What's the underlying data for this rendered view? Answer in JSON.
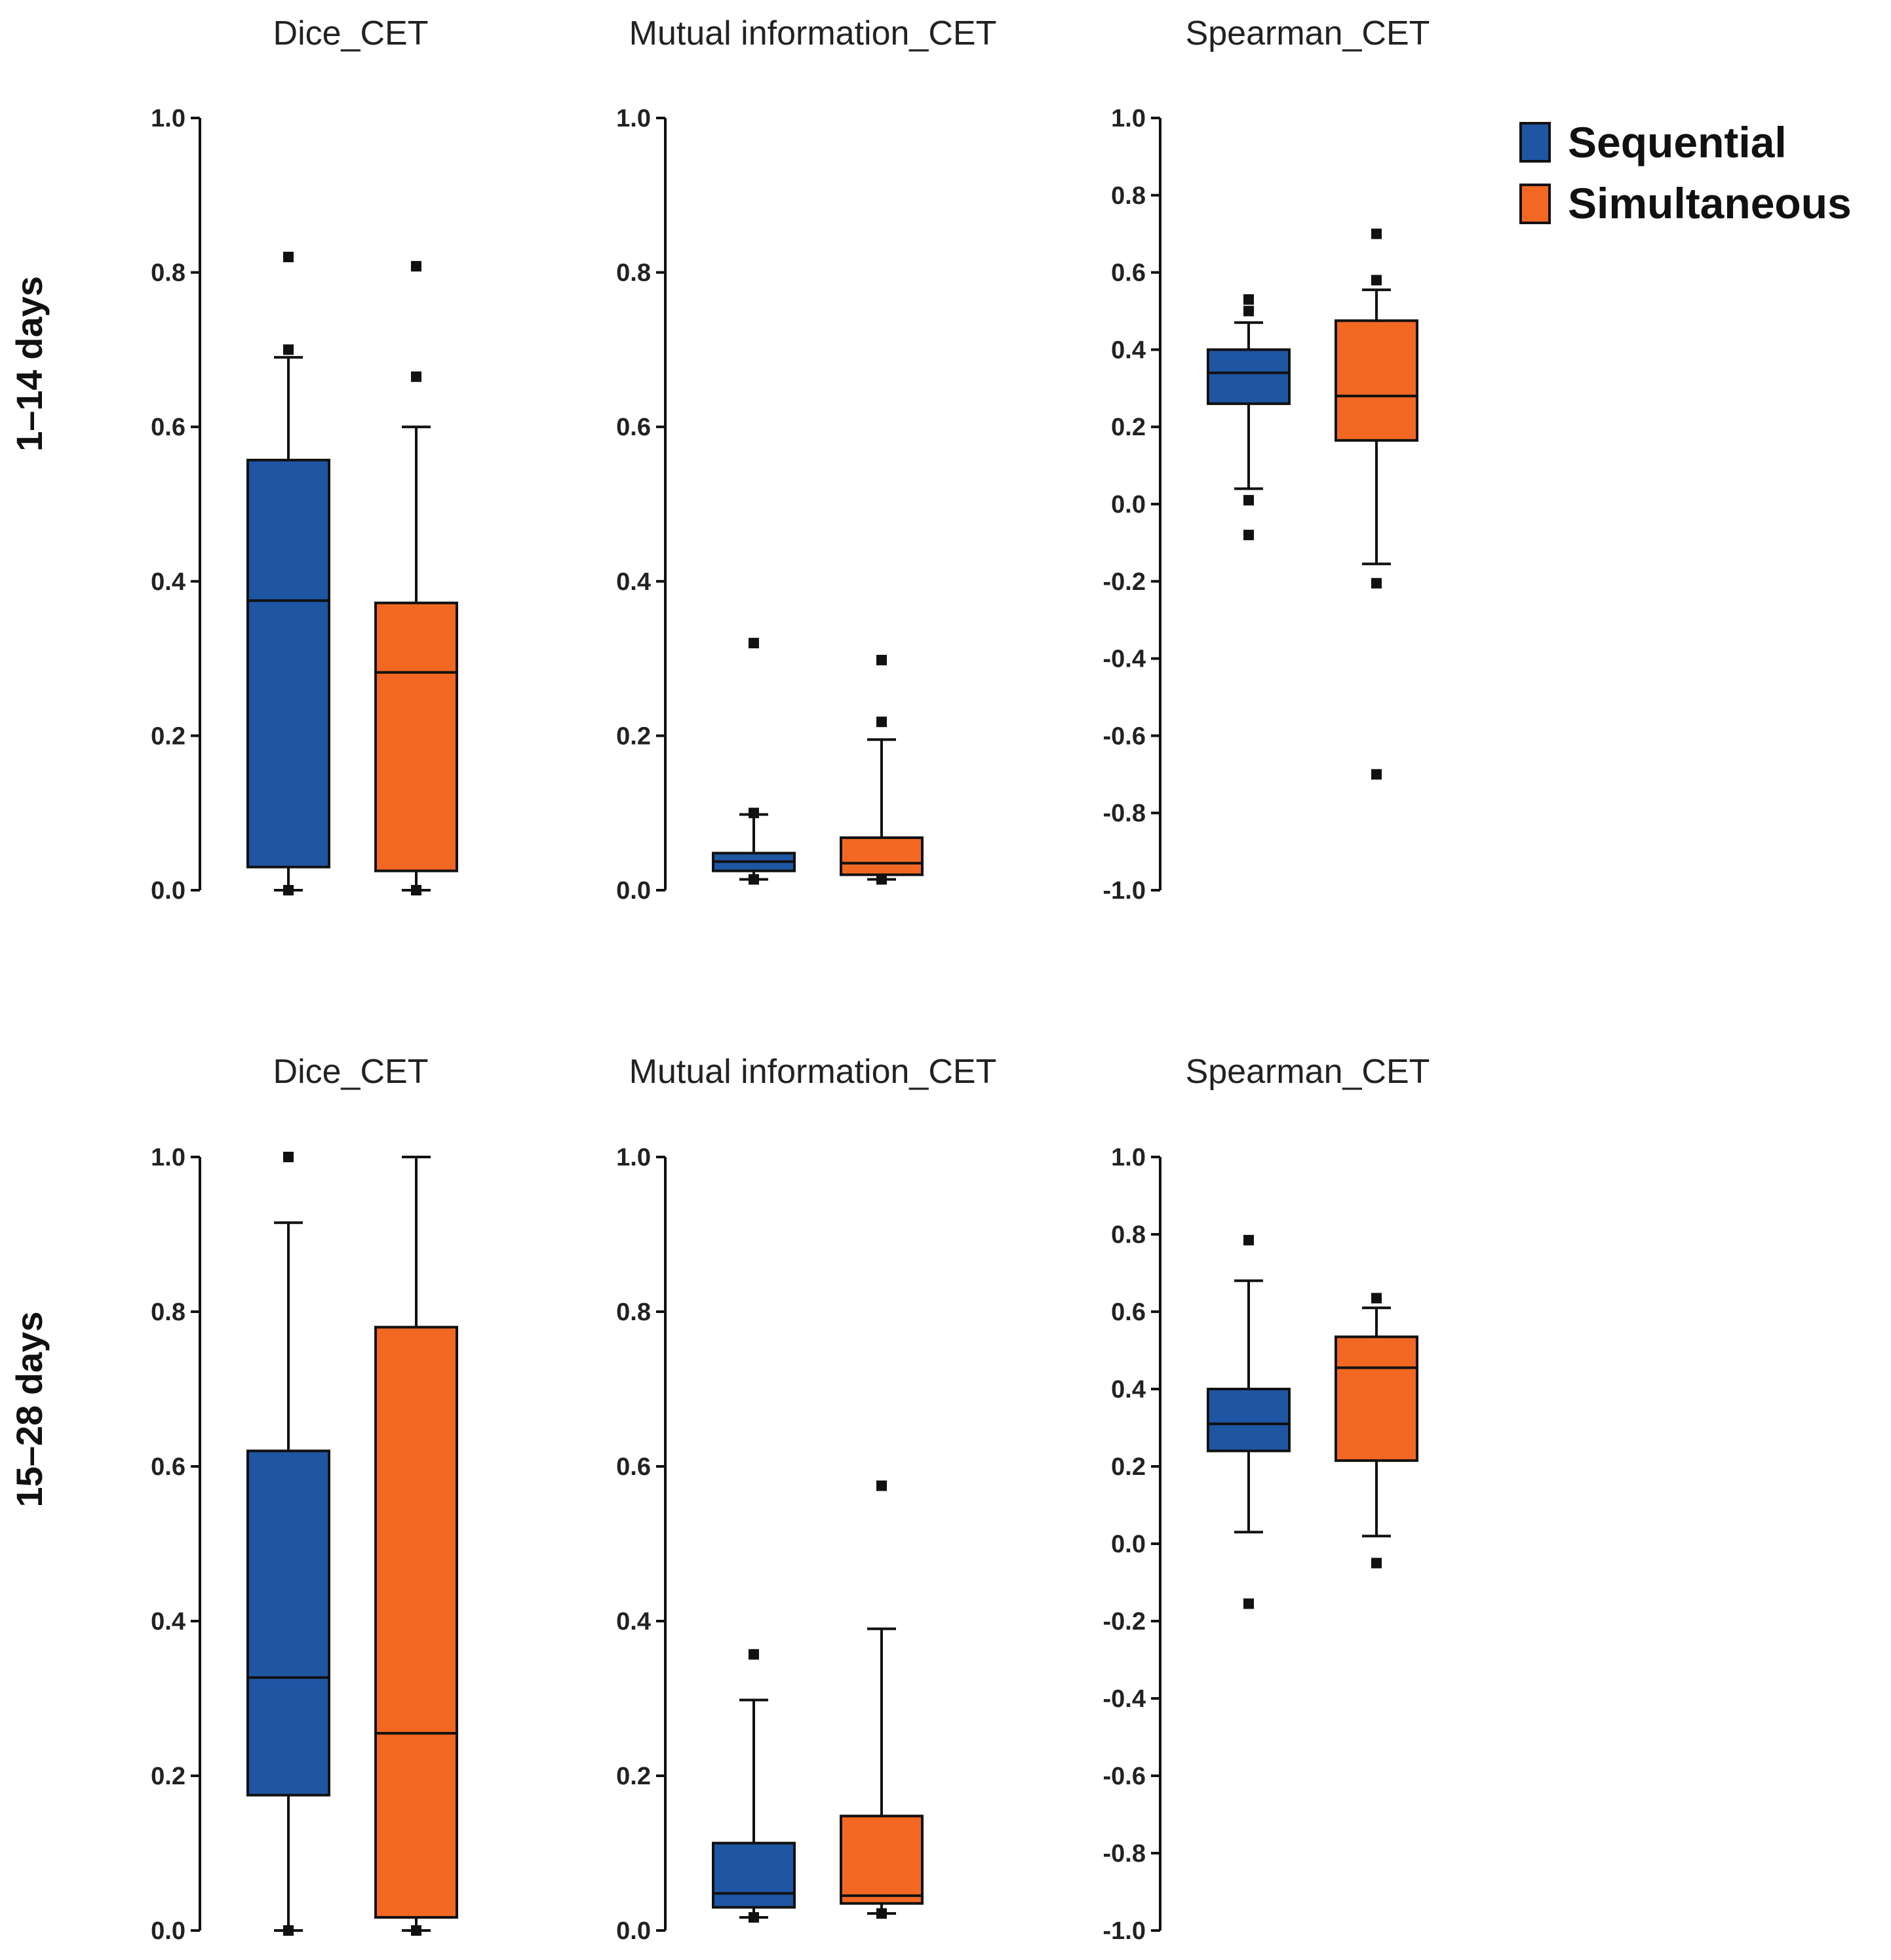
{
  "legend": [
    {
      "label": "Sequential",
      "color": "#1f56a4"
    },
    {
      "label": "Simultaneous",
      "color": "#f26822"
    }
  ],
  "rows": [
    {
      "label": "1–14 days"
    },
    {
      "label": "15–28 days"
    }
  ],
  "chart_data": [
    {
      "type": "box",
      "row": 0,
      "col": 0,
      "title": "Dice_CET",
      "ylim": [
        0,
        1
      ],
      "yticks": [
        0.0,
        0.2,
        0.4,
        0.6,
        0.8,
        1.0
      ],
      "ytick_labels": [
        "0.0",
        "0.2",
        "0.4",
        "0.6",
        "0.8",
        "1.0"
      ],
      "series": [
        {
          "name": "Sequential",
          "whisker_low": 0.0,
          "q1": 0.03,
          "median": 0.375,
          "q3": 0.557,
          "whisker_high": 0.69,
          "outliers": [
            0.0,
            0.0,
            0.7,
            0.82
          ]
        },
        {
          "name": "Simultaneous",
          "whisker_low": 0.0,
          "q1": 0.025,
          "median": 0.282,
          "q3": 0.372,
          "whisker_high": 0.6,
          "outliers": [
            0.0,
            0.0,
            0.665,
            0.808
          ]
        }
      ]
    },
    {
      "type": "box",
      "row": 0,
      "col": 1,
      "title": "Mutual information_CET",
      "ylim": [
        0,
        1
      ],
      "yticks": [
        0.0,
        0.2,
        0.4,
        0.6,
        0.8,
        1.0
      ],
      "ytick_labels": [
        "0.0",
        "0.2",
        "0.4",
        "0.6",
        "0.8",
        "1.0"
      ],
      "series": [
        {
          "name": "Sequential",
          "whisker_low": 0.014,
          "q1": 0.025,
          "median": 0.037,
          "q3": 0.048,
          "whisker_high": 0.098,
          "outliers": [
            0.014,
            0.014,
            0.1,
            0.32
          ]
        },
        {
          "name": "Simultaneous",
          "whisker_low": 0.014,
          "q1": 0.02,
          "median": 0.035,
          "q3": 0.068,
          "whisker_high": 0.195,
          "outliers": [
            0.014,
            0.014,
            0.218,
            0.298
          ]
        }
      ]
    },
    {
      "type": "box",
      "row": 0,
      "col": 2,
      "title": "Spearman_CET",
      "ylim": [
        -1,
        1
      ],
      "yticks": [
        -1.0,
        -0.8,
        -0.6,
        -0.4,
        -0.2,
        0.0,
        0.2,
        0.4,
        0.6,
        0.8,
        1.0
      ],
      "ytick_labels": [
        "-1.0",
        "-0.8",
        "-0.6",
        "-0.4",
        "-0.2",
        "0.0",
        "0.2",
        "0.4",
        "0.6",
        "0.8",
        "1.0"
      ],
      "series": [
        {
          "name": "Sequential",
          "whisker_low": 0.04,
          "q1": 0.26,
          "median": 0.34,
          "q3": 0.4,
          "whisker_high": 0.47,
          "outliers": [
            0.5,
            0.53,
            0.01,
            -0.08
          ]
        },
        {
          "name": "Simultaneous",
          "whisker_low": -0.155,
          "q1": 0.165,
          "median": 0.28,
          "q3": 0.475,
          "whisker_high": 0.555,
          "outliers": [
            0.58,
            0.7,
            -0.205,
            -0.7
          ]
        }
      ]
    },
    {
      "type": "box",
      "row": 1,
      "col": 0,
      "title": "Dice_CET",
      "ylim": [
        0,
        1
      ],
      "yticks": [
        0.0,
        0.2,
        0.4,
        0.6,
        0.8,
        1.0
      ],
      "ytick_labels": [
        "0.0",
        "0.2",
        "0.4",
        "0.6",
        "0.8",
        "1.0"
      ],
      "series": [
        {
          "name": "Sequential",
          "whisker_low": 0.0,
          "q1": 0.175,
          "median": 0.327,
          "q3": 0.62,
          "whisker_high": 0.915,
          "outliers": [
            1.0,
            0.0
          ]
        },
        {
          "name": "Simultaneous",
          "whisker_low": 0.0,
          "q1": 0.017,
          "median": 0.255,
          "q3": 0.78,
          "whisker_high": 1.0,
          "outliers": [
            0.0
          ]
        }
      ]
    },
    {
      "type": "box",
      "row": 1,
      "col": 1,
      "title": "Mutual information_CET",
      "ylim": [
        0,
        1
      ],
      "yticks": [
        0.0,
        0.2,
        0.4,
        0.6,
        0.8,
        1.0
      ],
      "ytick_labels": [
        "0.0",
        "0.2",
        "0.4",
        "0.6",
        "0.8",
        "1.0"
      ],
      "series": [
        {
          "name": "Sequential",
          "whisker_low": 0.017,
          "q1": 0.03,
          "median": 0.048,
          "q3": 0.113,
          "whisker_high": 0.298,
          "outliers": [
            0.357,
            0.017
          ]
        },
        {
          "name": "Simultaneous",
          "whisker_low": 0.022,
          "q1": 0.035,
          "median": 0.045,
          "q3": 0.148,
          "whisker_high": 0.39,
          "outliers": [
            0.575,
            0.022
          ]
        }
      ]
    },
    {
      "type": "box",
      "row": 1,
      "col": 2,
      "title": "Spearman_CET",
      "ylim": [
        -1,
        1
      ],
      "yticks": [
        -1.0,
        -0.8,
        -0.6,
        -0.4,
        -0.2,
        0.0,
        0.2,
        0.4,
        0.6,
        0.8,
        1.0
      ],
      "ytick_labels": [
        "-1.0",
        "-0.8",
        "-0.6",
        "-0.4",
        "-0.2",
        "0.0",
        "0.2",
        "0.4",
        "0.6",
        "0.8",
        "1.0"
      ],
      "series": [
        {
          "name": "Sequential",
          "whisker_low": 0.03,
          "q1": 0.24,
          "median": 0.31,
          "q3": 0.4,
          "whisker_high": 0.68,
          "outliers": [
            0.785,
            -0.155
          ]
        },
        {
          "name": "Simultaneous",
          "whisker_low": 0.02,
          "q1": 0.215,
          "median": 0.455,
          "q3": 0.535,
          "whisker_high": 0.61,
          "outliers": [
            0.635,
            -0.05
          ]
        }
      ]
    }
  ]
}
